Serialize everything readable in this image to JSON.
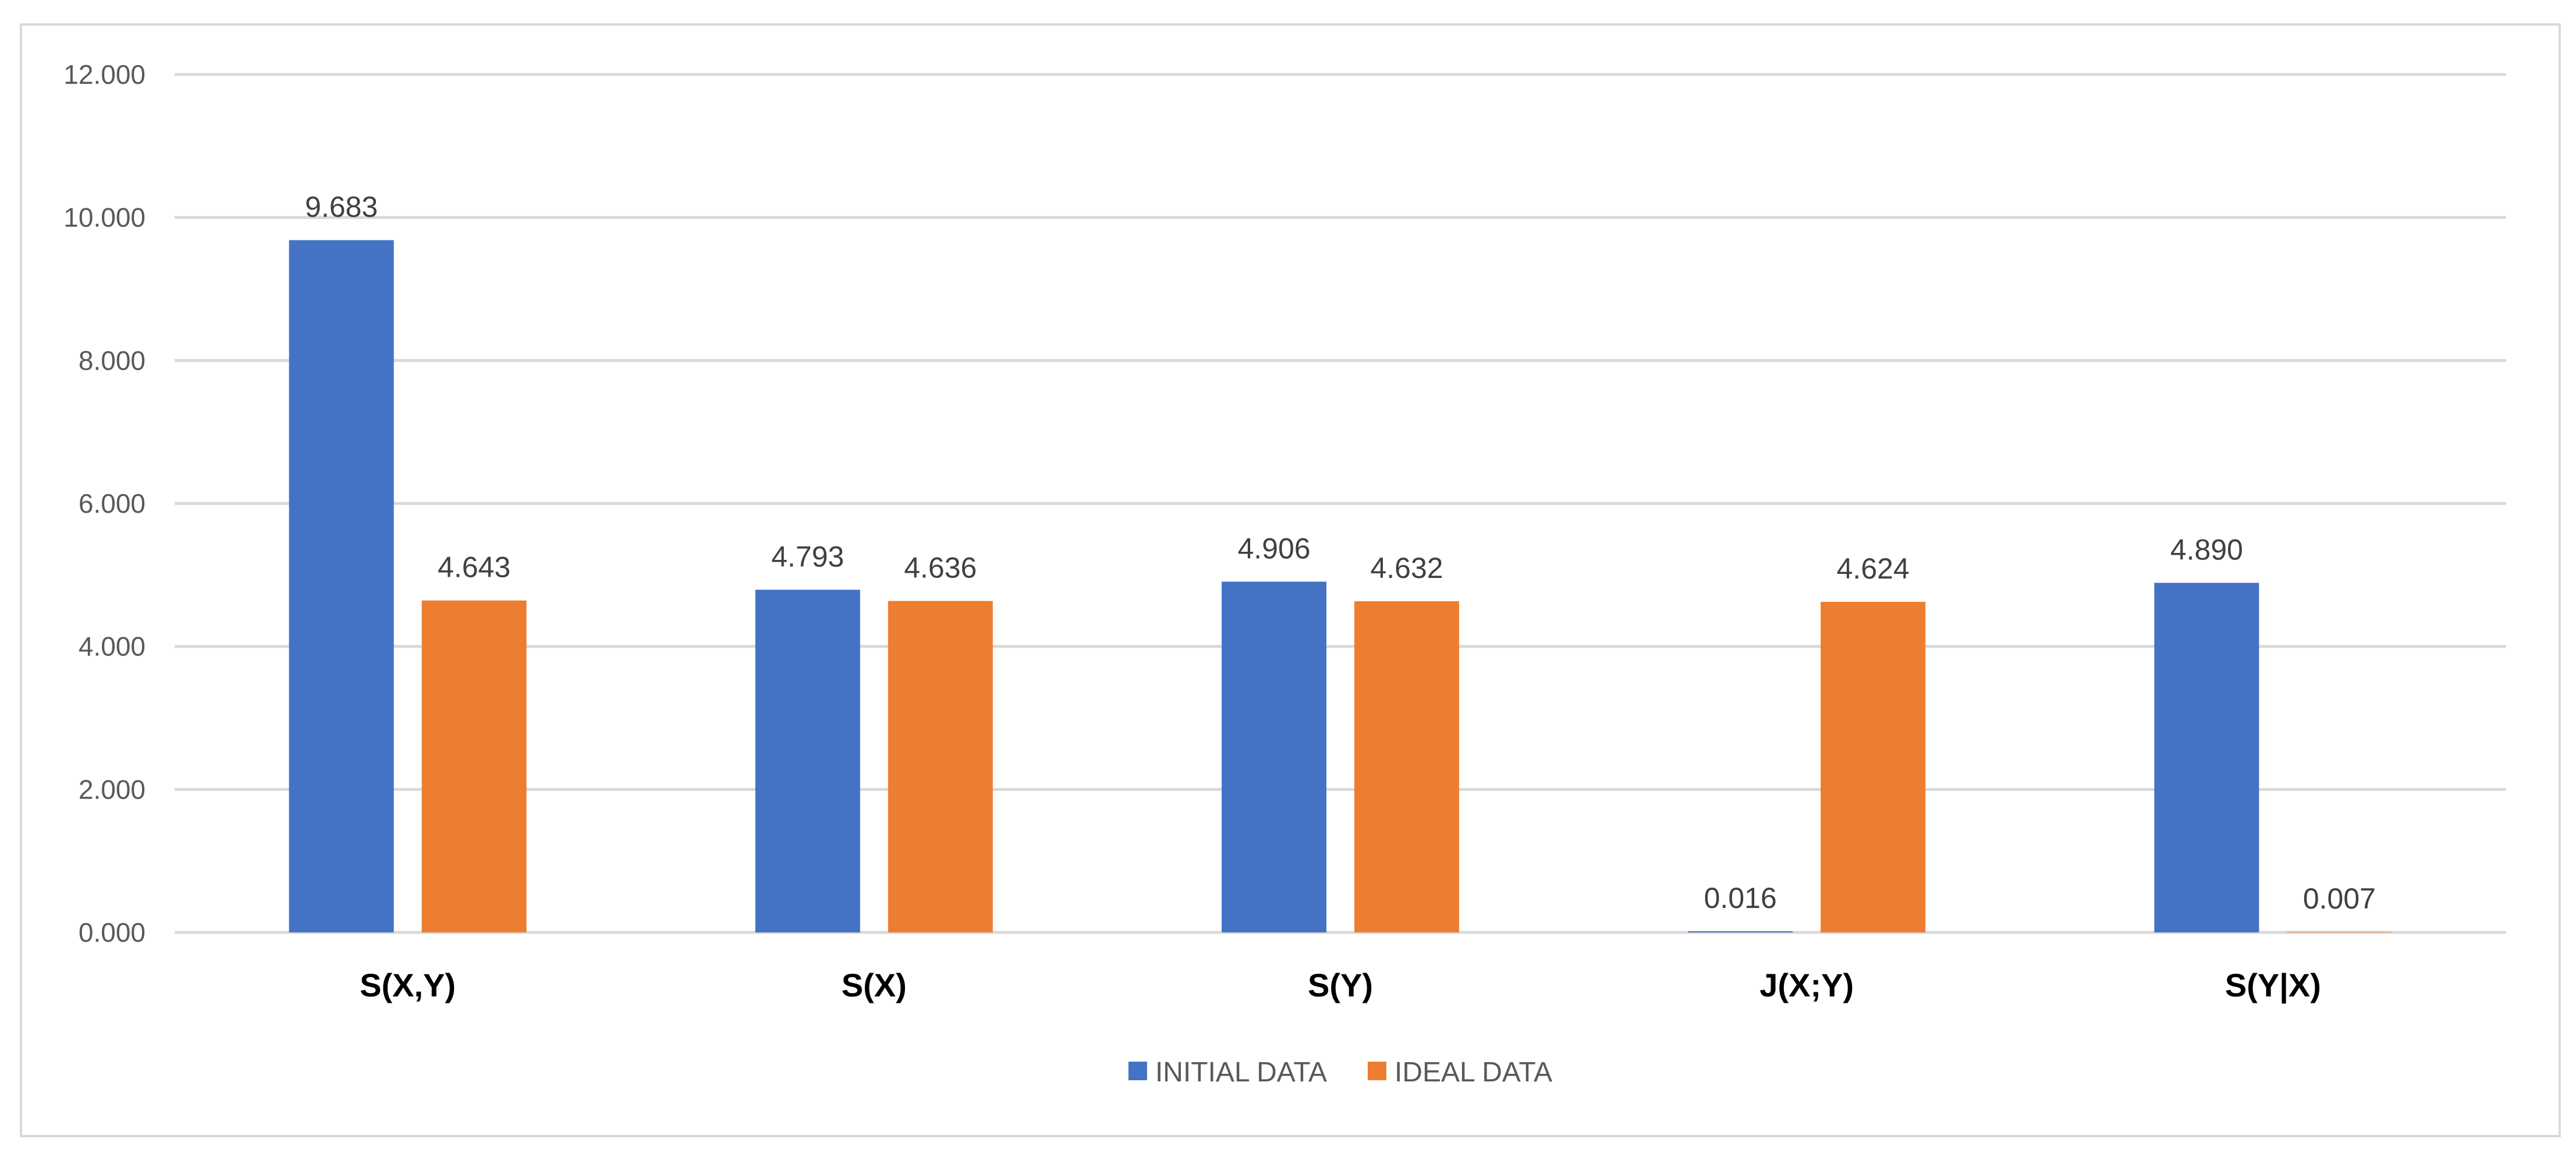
{
  "chart_data": {
    "type": "bar",
    "title": "",
    "xlabel": "",
    "ylabel": "",
    "categories": [
      "S(X,Y)",
      "S(X)",
      "S(Y)",
      "J(X;Y)",
      "S(Y|X)"
    ],
    "series": [
      {
        "name": "INITIAL DATA",
        "color": "#4472C4",
        "values": [
          9.683,
          4.793,
          4.906,
          0.016,
          4.89
        ],
        "labels": [
          "9.683",
          "4.793",
          "4.906",
          "0.016",
          "4.890"
        ]
      },
      {
        "name": "IDEAL DATA",
        "color": "#ED7D31",
        "values": [
          4.643,
          4.636,
          4.632,
          4.624,
          0.007
        ],
        "labels": [
          "4.643",
          "4.636",
          "4.632",
          "4.624",
          "0.007"
        ]
      }
    ],
    "ylim": [
      0,
      12
    ],
    "yticks": [
      0,
      2,
      4,
      6,
      8,
      10,
      12
    ],
    "ytick_labels": [
      "0.000",
      "2.000",
      "4.000",
      "6.000",
      "8.000",
      "10.000",
      "12.000"
    ],
    "grid": true,
    "legend_position": "bottom",
    "gridline_color": "#d9d9d9"
  }
}
